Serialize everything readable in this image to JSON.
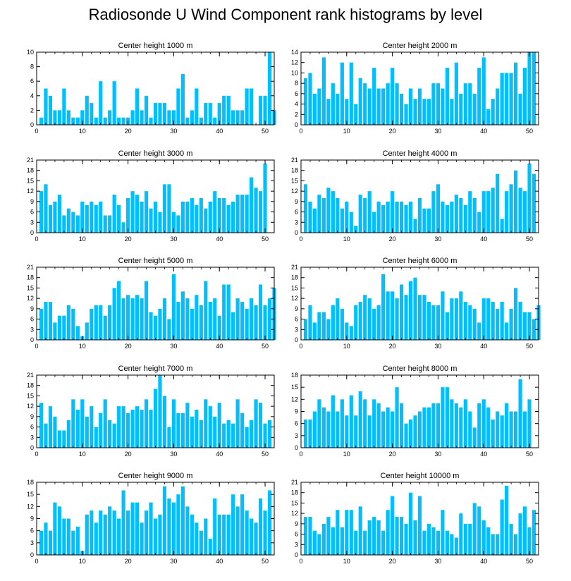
{
  "title": "Radiosonde U Wind Component rank histograms by level",
  "colors": {
    "bar": "#00bfff",
    "axis": "#000000"
  },
  "chart_data": [
    {
      "type": "bar",
      "title": "Center height 1000 m",
      "xlim": [
        0,
        52
      ],
      "ylim": [
        0,
        10
      ],
      "yticks": [
        0,
        2,
        4,
        6,
        8,
        10
      ],
      "xticks": [
        0,
        10,
        20,
        30,
        40,
        50
      ],
      "values": [
        1,
        5,
        4,
        2,
        2,
        5,
        2,
        1,
        1,
        2,
        4,
        3,
        1,
        6,
        1,
        2,
        6,
        1,
        1,
        1,
        2,
        5,
        2,
        4,
        1,
        3,
        3,
        3,
        2,
        2,
        5,
        7,
        1,
        2,
        5,
        1,
        3,
        3,
        1,
        3,
        4,
        4,
        2,
        2,
        2,
        5,
        5,
        0,
        4,
        4,
        10,
        2
      ]
    },
    {
      "type": "bar",
      "title": "Center height 2000 m",
      "xlim": [
        0,
        52
      ],
      "ylim": [
        0,
        14
      ],
      "yticks": [
        0,
        2,
        4,
        6,
        8,
        10,
        12,
        14
      ],
      "xticks": [
        0,
        10,
        20,
        30,
        40,
        50
      ],
      "values": [
        9,
        10,
        6,
        7,
        13,
        5,
        8,
        6,
        12,
        5,
        12,
        4,
        9,
        8,
        7,
        11,
        7,
        7,
        8,
        11,
        8,
        6,
        4,
        7,
        5,
        7,
        5,
        5,
        8,
        8,
        7,
        11,
        5,
        12,
        6,
        8,
        8,
        6,
        11,
        13,
        3,
        5,
        7,
        10,
        10,
        10,
        12,
        6,
        11,
        14,
        14,
        0
      ]
    },
    {
      "type": "bar",
      "title": "Center height 3000 m",
      "xlim": [
        0,
        52
      ],
      "ylim": [
        0,
        21
      ],
      "yticks": [
        0,
        3,
        6,
        9,
        12,
        15,
        18,
        21
      ],
      "xticks": [
        0,
        10,
        20,
        30,
        40,
        50
      ],
      "values": [
        12,
        14,
        8,
        9,
        11,
        5,
        7,
        6,
        5,
        9,
        8,
        9,
        8,
        9,
        5,
        5,
        11,
        8,
        3,
        10,
        12,
        11,
        9,
        12,
        7,
        9,
        6,
        14,
        14,
        6,
        5,
        9,
        9,
        10,
        8,
        10,
        7,
        9,
        12,
        10,
        10,
        8,
        9,
        11,
        11,
        11,
        16,
        13,
        12,
        20,
        0,
        0
      ]
    },
    {
      "type": "bar",
      "title": "Center height 4000 m",
      "xlim": [
        0,
        52
      ],
      "ylim": [
        0,
        21
      ],
      "yticks": [
        0,
        3,
        6,
        9,
        12,
        15,
        18,
        21
      ],
      "xticks": [
        0,
        10,
        20,
        30,
        40,
        50
      ],
      "values": [
        14,
        9,
        7,
        11,
        10,
        13,
        12,
        10,
        7,
        9,
        6,
        2,
        11,
        10,
        12,
        6,
        9,
        8,
        9,
        12,
        9,
        9,
        8,
        9,
        4,
        10,
        7,
        7,
        12,
        14,
        9,
        8,
        9,
        11,
        10,
        8,
        12,
        10,
        6,
        12,
        12,
        13,
        17,
        4,
        12,
        14,
        18,
        13,
        12,
        20,
        17,
        0
      ]
    },
    {
      "type": "bar",
      "title": "Center height 5000 m",
      "xlim": [
        0,
        52
      ],
      "ylim": [
        0,
        21
      ],
      "yticks": [
        0,
        3,
        6,
        9,
        12,
        15,
        18,
        21
      ],
      "xticks": [
        0,
        10,
        20,
        30,
        40,
        50
      ],
      "values": [
        9,
        11,
        11,
        5,
        7,
        7,
        10,
        9,
        4,
        1,
        5,
        9,
        10,
        10,
        7,
        10,
        15,
        17,
        12,
        13,
        12,
        13,
        12,
        17,
        8,
        7,
        9,
        12,
        6,
        19,
        11,
        14,
        12,
        9,
        13,
        10,
        17,
        11,
        12,
        7,
        16,
        16,
        8,
        12,
        11,
        9,
        12,
        10,
        16,
        10,
        12,
        15
      ]
    },
    {
      "type": "bar",
      "title": "Center height 6000 m",
      "xlim": [
        0,
        52
      ],
      "ylim": [
        0,
        21
      ],
      "yticks": [
        0,
        3,
        6,
        9,
        12,
        15,
        18,
        21
      ],
      "xticks": [
        0,
        10,
        20,
        30,
        40,
        50
      ],
      "values": [
        6,
        10,
        5,
        8,
        8,
        6,
        10,
        12,
        9,
        5,
        4,
        10,
        11,
        13,
        12,
        9,
        10,
        19,
        14,
        14,
        12,
        16,
        13,
        17,
        18,
        13,
        13,
        11,
        10,
        10,
        14,
        8,
        12,
        12,
        14,
        11,
        10,
        9,
        5,
        12,
        12,
        11,
        9,
        11,
        5,
        9,
        15,
        11,
        8,
        8,
        6,
        10
      ]
    },
    {
      "type": "bar",
      "title": "Center height 7000 m",
      "xlim": [
        0,
        52
      ],
      "ylim": [
        0,
        21
      ],
      "yticks": [
        0,
        3,
        6,
        9,
        12,
        15,
        18,
        21
      ],
      "xticks": [
        0,
        10,
        20,
        30,
        40,
        50
      ],
      "values": [
        13,
        7,
        12,
        9,
        5,
        5,
        8,
        14,
        11,
        14,
        9,
        12,
        6,
        10,
        14,
        8,
        7,
        12,
        12,
        10,
        11,
        12,
        11,
        14,
        11,
        17,
        21,
        15,
        6,
        14,
        10,
        10,
        13,
        9,
        11,
        8,
        14,
        12,
        9,
        13,
        7,
        8,
        7,
        14,
        10,
        6,
        8,
        14,
        13,
        7,
        8,
        0
      ]
    },
    {
      "type": "bar",
      "title": "Center height 8000 m",
      "xlim": [
        0,
        52
      ],
      "ylim": [
        0,
        18
      ],
      "yticks": [
        0,
        3,
        6,
        9,
        12,
        15,
        18
      ],
      "xticks": [
        0,
        10,
        20,
        30,
        40,
        50
      ],
      "values": [
        7,
        7,
        9,
        12,
        10,
        9,
        13,
        9,
        12,
        8,
        13,
        8,
        14,
        12,
        8,
        12,
        11,
        9,
        10,
        9,
        15,
        11,
        6,
        7,
        8,
        9,
        10,
        10,
        11,
        11,
        15,
        15,
        12,
        11,
        10,
        12,
        9,
        5,
        11,
        12,
        10,
        7,
        9,
        8,
        11,
        9,
        9,
        17,
        9,
        12,
        0,
        0
      ]
    },
    {
      "type": "bar",
      "title": "Center height 9000 m",
      "xlim": [
        0,
        52
      ],
      "ylim": [
        0,
        18
      ],
      "yticks": [
        0,
        3,
        6,
        9,
        12,
        15,
        18
      ],
      "xticks": [
        0,
        10,
        20,
        30,
        40,
        50
      ],
      "values": [
        6,
        8,
        6,
        13,
        12,
        9,
        9,
        6,
        7,
        1,
        10,
        11,
        8,
        11,
        10,
        12,
        11,
        9,
        16,
        11,
        13,
        13,
        8,
        11,
        13,
        9,
        10,
        17,
        14,
        13,
        15,
        17,
        12,
        10,
        8,
        6,
        9,
        4,
        14,
        10,
        10,
        10,
        15,
        12,
        15,
        11,
        9,
        8,
        14,
        11,
        16,
        0
      ]
    },
    {
      "type": "bar",
      "title": "Center height 10000 m",
      "xlim": [
        0,
        52
      ],
      "ylim": [
        0,
        21
      ],
      "yticks": [
        0,
        3,
        6,
        9,
        12,
        15,
        18,
        21
      ],
      "xticks": [
        0,
        10,
        20,
        30,
        40,
        50
      ],
      "values": [
        11,
        11,
        7,
        6,
        9,
        11,
        8,
        13,
        8,
        13,
        13,
        7,
        14,
        7,
        10,
        11,
        10,
        7,
        13,
        17,
        11,
        11,
        9,
        18,
        10,
        17,
        7,
        9,
        8,
        7,
        13,
        7,
        6,
        5,
        12,
        9,
        9,
        15,
        14,
        10,
        8,
        6,
        6,
        16,
        20,
        9,
        6,
        12,
        14,
        8,
        13,
        0
      ]
    }
  ]
}
